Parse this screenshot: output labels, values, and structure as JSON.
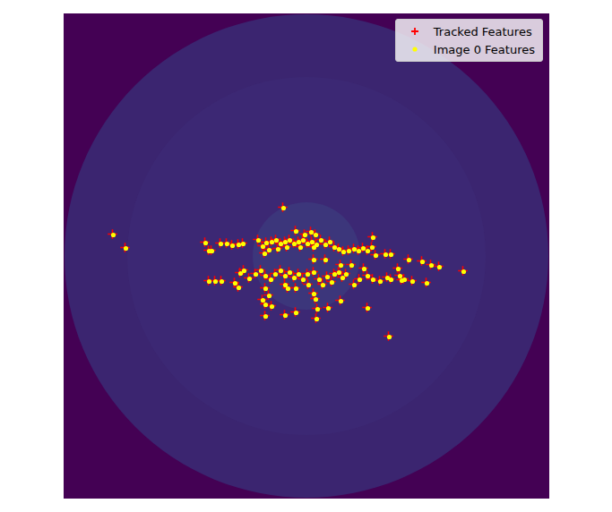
{
  "chart_data": {
    "type": "scatter",
    "tick_labels": false,
    "legend": "upper right",
    "xlim": [
      0,
      541
    ],
    "ylim": [
      541,
      0
    ],
    "series": [
      {
        "name": "Tracked Features",
        "color": "#ff0000",
        "marker": "plus",
        "x": [
          244,
          54,
          68,
          157,
          161,
          164,
          174,
          181,
          187,
          194,
          199,
          216,
          221,
          225,
          231,
          236,
          241,
          246,
          251,
          256,
          261,
          266,
          271,
          276,
          281,
          286,
          291,
          296,
          301,
          306,
          311,
          317,
          323,
          328,
          333,
          338,
          343,
          347,
          344,
          258,
          268,
          280,
          275,
          223,
          228,
          238,
          248,
          263,
          278,
          358,
          364,
          372,
          384,
          399,
          409,
          418,
          445,
          161,
          168,
          175,
          190,
          194,
          196,
          200,
          206,
          213,
          219,
          224,
          230,
          235,
          241,
          246,
          251,
          256,
          261,
          266,
          271,
          278,
          284,
          288,
          293,
          298,
          301,
          306,
          310,
          314,
          323,
          329,
          334,
          338,
          344,
          352,
          360,
          364,
          374,
          379,
          388,
          404,
          376,
          224,
          228,
          246,
          249,
          258,
          278,
          280,
          282,
          281,
          221,
          224,
          231,
          224,
          246,
          258,
          294,
          308,
          338,
          362,
          291,
          320,
          308,
          278,
          272
        ],
        "y": [
          216,
          246,
          261,
          255,
          264,
          264,
          256,
          256,
          258,
          257,
          256,
          252,
          259,
          255,
          254,
          252,
          256,
          254,
          252,
          256,
          254,
          252,
          256,
          254,
          257,
          252,
          257,
          254,
          260,
          262,
          265,
          264,
          262,
          264,
          261,
          264,
          260,
          269,
          249,
          242,
          246,
          246,
          243,
          267,
          263,
          262,
          260,
          260,
          260,
          268,
          268,
          284,
          274,
          276,
          280,
          282,
          287,
          298,
          298,
          298,
          300,
          305,
          289,
          286,
          295,
          290,
          286,
          292,
          296,
          290,
          286,
          292,
          288,
          294,
          290,
          296,
          290,
          288,
          296,
          302,
          293,
          299,
          290,
          288,
          294,
          290,
          302,
          296,
          284,
          292,
          296,
          298,
          294,
          296,
          292,
          296,
          298,
          300,
          297,
          306,
          314,
          302,
          306,
          306,
          312,
          318,
          329,
          340,
          319,
          324,
          326,
          337,
          336,
          333,
          328,
          320,
          328,
          360,
          274,
          280,
          280,
          274,
          302
        ]
      },
      {
        "name": "Image 0 Features",
        "color": "#ffff00",
        "marker": "circle",
        "x": [
          245,
          55,
          69,
          158,
          162,
          165,
          175,
          182,
          188,
          195,
          200,
          217,
          222,
          226,
          232,
          237,
          242,
          247,
          252,
          257,
          262,
          267,
          272,
          277,
          282,
          287,
          292,
          297,
          302,
          307,
          312,
          318,
          324,
          329,
          334,
          339,
          344,
          348,
          345,
          259,
          269,
          281,
          276,
          224,
          229,
          239,
          249,
          264,
          279,
          359,
          365,
          373,
          385,
          400,
          410,
          419,
          446,
          162,
          169,
          176,
          191,
          195,
          197,
          201,
          207,
          214,
          220,
          225,
          231,
          236,
          242,
          247,
          252,
          257,
          262,
          267,
          272,
          279,
          285,
          289,
          294,
          299,
          302,
          307,
          311,
          315,
          324,
          330,
          335,
          339,
          345,
          353,
          361,
          365,
          375,
          380,
          389,
          405,
          377,
          225,
          229,
          247,
          250,
          259,
          279,
          281,
          283,
          282,
          222,
          225,
          232,
          225,
          247,
          259,
          295,
          309,
          339,
          363,
          292,
          321,
          309,
          279,
          273
        ],
        "y": [
          217,
          247,
          262,
          256,
          265,
          265,
          257,
          257,
          259,
          258,
          257,
          253,
          260,
          256,
          255,
          253,
          257,
          255,
          253,
          257,
          255,
          253,
          257,
          255,
          258,
          253,
          258,
          255,
          261,
          263,
          266,
          265,
          263,
          265,
          262,
          265,
          261,
          270,
          250,
          243,
          247,
          247,
          244,
          268,
          264,
          263,
          261,
          261,
          261,
          269,
          269,
          285,
          275,
          277,
          281,
          283,
          288,
          299,
          299,
          299,
          301,
          306,
          290,
          287,
          296,
          291,
          287,
          293,
          297,
          291,
          287,
          293,
          289,
          295,
          291,
          297,
          291,
          289,
          297,
          303,
          294,
          300,
          291,
          289,
          295,
          291,
          303,
          297,
          285,
          293,
          297,
          299,
          295,
          297,
          293,
          297,
          299,
          301,
          298,
          307,
          315,
          303,
          307,
          307,
          313,
          319,
          330,
          341,
          320,
          325,
          327,
          338,
          337,
          334,
          329,
          321,
          329,
          361,
          275,
          281,
          281,
          275,
          303
        ]
      }
    ]
  }
}
